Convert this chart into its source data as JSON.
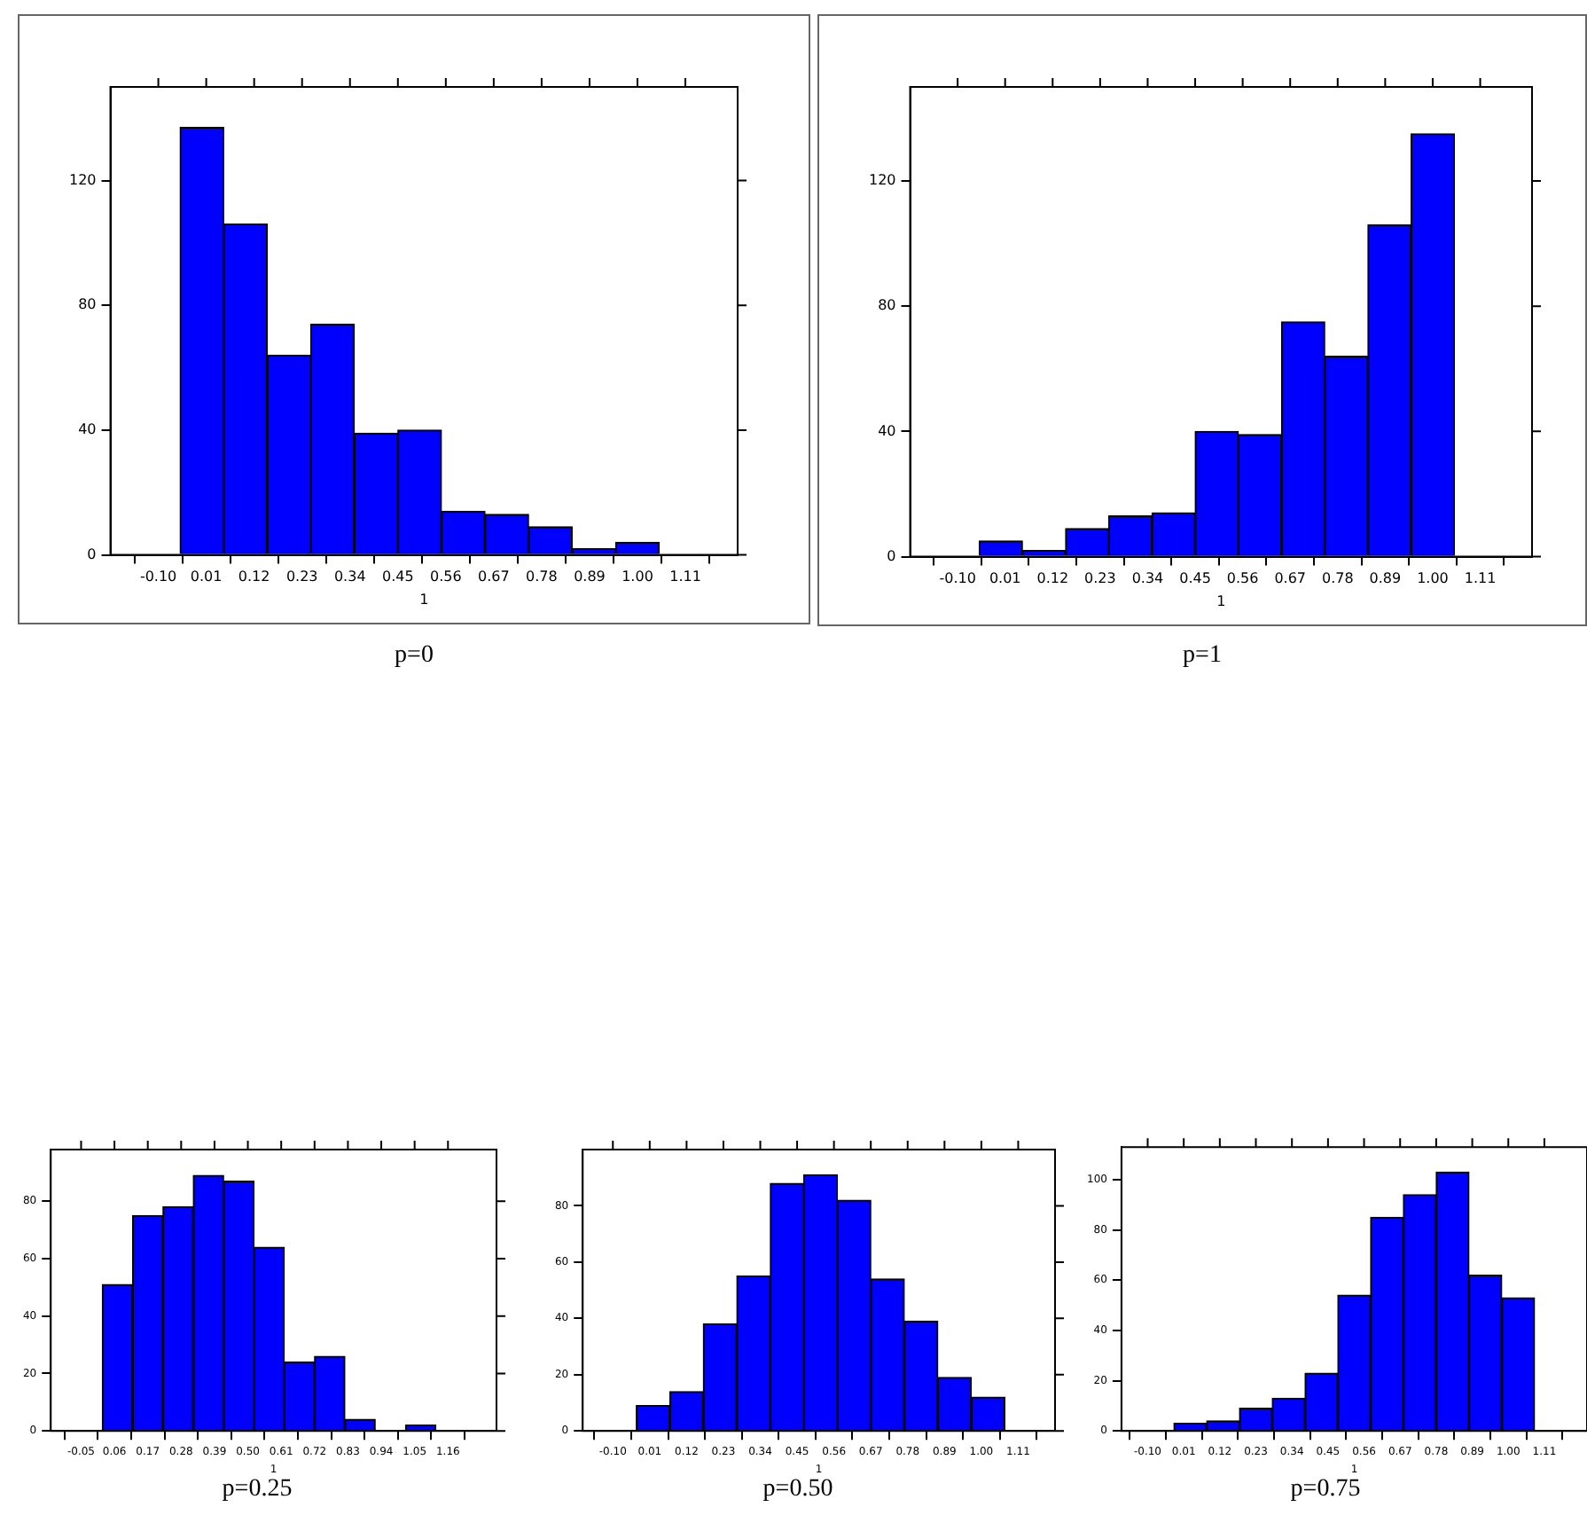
{
  "chart_data": [
    {
      "type": "histogram",
      "title": "p=0",
      "xlabel": "1",
      "color": "#0000ff",
      "bins": [
        -0.05,
        0.05,
        0.15,
        0.25,
        0.35,
        0.45,
        0.55,
        0.65,
        0.75,
        0.85,
        0.95,
        1.05
      ],
      "values": [
        137,
        106,
        64,
        74,
        39,
        40,
        14,
        13,
        9,
        2,
        4
      ],
      "xlim": [
        -0.21,
        1.23
      ],
      "ylim": [
        0,
        150
      ],
      "xticks": [
        {
          "value": -0.1,
          "label": "-0.10"
        },
        {
          "value": 0.01,
          "label": "0.01"
        },
        {
          "value": 0.12,
          "label": "0.12"
        },
        {
          "value": 0.23,
          "label": "0.23"
        },
        {
          "value": 0.34,
          "label": "0.34"
        },
        {
          "value": 0.45,
          "label": "0.45"
        },
        {
          "value": 0.56,
          "label": "0.56"
        },
        {
          "value": 0.67,
          "label": "0.67"
        },
        {
          "value": 0.78,
          "label": "0.78"
        },
        {
          "value": 0.89,
          "label": "0.89"
        },
        {
          "value": 1.0,
          "label": "1.00"
        },
        {
          "value": 1.11,
          "label": "1.11"
        }
      ],
      "yticks": [
        0,
        40,
        80,
        120
      ]
    },
    {
      "type": "histogram",
      "title": "p=1",
      "xlabel": "1",
      "color": "#0000ff",
      "bins": [
        -0.05,
        0.05,
        0.15,
        0.25,
        0.35,
        0.45,
        0.55,
        0.65,
        0.75,
        0.85,
        0.95,
        1.05
      ],
      "values": [
        5,
        2,
        9,
        13,
        14,
        40,
        39,
        75,
        64,
        106,
        135
      ],
      "xlim": [
        -0.21,
        1.23
      ],
      "ylim": [
        0,
        150
      ],
      "xticks": [
        {
          "value": -0.1,
          "label": "-0.10"
        },
        {
          "value": 0.01,
          "label": "0.01"
        },
        {
          "value": 0.12,
          "label": "0.12"
        },
        {
          "value": 0.23,
          "label": "0.23"
        },
        {
          "value": 0.34,
          "label": "0.34"
        },
        {
          "value": 0.45,
          "label": "0.45"
        },
        {
          "value": 0.56,
          "label": "0.56"
        },
        {
          "value": 0.67,
          "label": "0.67"
        },
        {
          "value": 0.78,
          "label": "0.78"
        },
        {
          "value": 0.89,
          "label": "0.89"
        },
        {
          "value": 1.0,
          "label": "1.00"
        },
        {
          "value": 1.11,
          "label": "1.11"
        }
      ],
      "yticks": [
        0,
        40,
        80,
        120
      ]
    },
    {
      "type": "histogram",
      "title": "p=0.25",
      "xlabel": "1",
      "color": "#0000ff",
      "bins": [
        0.02,
        0.12,
        0.22,
        0.32,
        0.42,
        0.52,
        0.62,
        0.72,
        0.82,
        0.92,
        1.02,
        1.12
      ],
      "values": [
        51,
        75,
        78,
        89,
        87,
        64,
        24,
        26,
        4,
        0,
        2
      ],
      "xlim": [
        -0.15,
        1.32
      ],
      "ylim": [
        0,
        98
      ],
      "xticks": [
        {
          "value": -0.05,
          "label": "-0.05"
        },
        {
          "value": 0.06,
          "label": "0.06"
        },
        {
          "value": 0.17,
          "label": "0.17"
        },
        {
          "value": 0.28,
          "label": "0.28"
        },
        {
          "value": 0.39,
          "label": "0.39"
        },
        {
          "value": 0.5,
          "label": "0.50"
        },
        {
          "value": 0.61,
          "label": "0.61"
        },
        {
          "value": 0.72,
          "label": "0.72"
        },
        {
          "value": 0.83,
          "label": "0.83"
        },
        {
          "value": 0.94,
          "label": "0.94"
        },
        {
          "value": 1.05,
          "label": "1.05"
        },
        {
          "value": 1.16,
          "label": "1.16"
        }
      ],
      "yticks": [
        0,
        20,
        40,
        60,
        80
      ]
    },
    {
      "type": "histogram",
      "title": "p=0.50",
      "xlabel": "1",
      "color": "#0000ff",
      "bins": [
        -0.03,
        0.07,
        0.17,
        0.27,
        0.37,
        0.47,
        0.57,
        0.67,
        0.77,
        0.87,
        0.97,
        1.07
      ],
      "values": [
        9,
        14,
        38,
        55,
        88,
        91,
        82,
        54,
        39,
        19,
        12
      ],
      "xlim": [
        -0.19,
        1.22
      ],
      "ylim": [
        0,
        100
      ],
      "xticks": [
        {
          "value": -0.1,
          "label": "-0.10"
        },
        {
          "value": 0.01,
          "label": "0.01"
        },
        {
          "value": 0.12,
          "label": "0.12"
        },
        {
          "value": 0.23,
          "label": "0.23"
        },
        {
          "value": 0.34,
          "label": "0.34"
        },
        {
          "value": 0.45,
          "label": "0.45"
        },
        {
          "value": 0.56,
          "label": "0.56"
        },
        {
          "value": 0.67,
          "label": "0.67"
        },
        {
          "value": 0.78,
          "label": "0.78"
        },
        {
          "value": 0.89,
          "label": "0.89"
        },
        {
          "value": 1.0,
          "label": "1.00"
        },
        {
          "value": 1.11,
          "label": "1.11"
        }
      ],
      "yticks": [
        0,
        20,
        40,
        60,
        80
      ]
    },
    {
      "type": "histogram",
      "title": "p=0.75",
      "xlabel": "1",
      "color": "#0000ff",
      "bins": [
        -0.02,
        0.08,
        0.18,
        0.28,
        0.38,
        0.48,
        0.58,
        0.68,
        0.78,
        0.88,
        0.98,
        1.08
      ],
      "values": [
        3,
        4,
        9,
        13,
        23,
        54,
        85,
        94,
        103,
        62,
        53
      ],
      "xlim": [
        -0.18,
        1.24
      ],
      "ylim": [
        0,
        113
      ],
      "xticks": [
        {
          "value": -0.1,
          "label": "-0.10"
        },
        {
          "value": 0.01,
          "label": "0.01"
        },
        {
          "value": 0.12,
          "label": "0.12"
        },
        {
          "value": 0.23,
          "label": "0.23"
        },
        {
          "value": 0.34,
          "label": "0.34"
        },
        {
          "value": 0.45,
          "label": "0.45"
        },
        {
          "value": 0.56,
          "label": "0.56"
        },
        {
          "value": 0.67,
          "label": "0.67"
        },
        {
          "value": 0.78,
          "label": "0.78"
        },
        {
          "value": 0.89,
          "label": "0.89"
        },
        {
          "value": 1.0,
          "label": "1.00"
        },
        {
          "value": 1.11,
          "label": "1.11"
        }
      ],
      "yticks": [
        0,
        20,
        40,
        60,
        80,
        100
      ]
    }
  ]
}
